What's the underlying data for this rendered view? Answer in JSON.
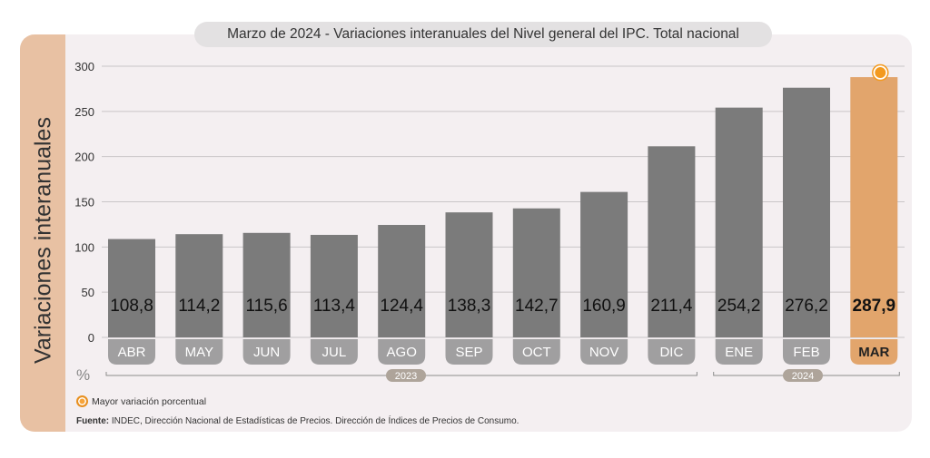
{
  "title": "Marzo de 2024 - Variaciones interanuales del Nivel general del IPC. Total nacional",
  "colors": {
    "bar": "#7b7b7b",
    "highlight_bar": "#e2a56c",
    "label_pill": "#a09fa0",
    "highlight_pill": "#e2a56c",
    "marker": "#f39a1f",
    "sidebar": "#e8c1a3",
    "year_pill": "#aea49a"
  },
  "legend": {
    "marker_label": "Mayor variación porcentual",
    "marker_icon": "orange-circle-icon"
  },
  "source": {
    "label": "Fuente:",
    "text": " INDEC, Dirección Nacional de Estadísticas de Precios. Dirección de Índices de Precios de Consumo."
  },
  "chart_data": {
    "type": "bar",
    "title": "Marzo de 2024 - Variaciones interanuales del Nivel general del IPC. Total nacional",
    "xlabel": "",
    "ylabel": "Variaciones interanuales",
    "yunit": "%",
    "ylim": [
      0,
      300
    ],
    "yticks": [
      0,
      50,
      100,
      150,
      200,
      250,
      300
    ],
    "grid": true,
    "categories": [
      "ABR",
      "MAY",
      "JUN",
      "JUL",
      "AGO",
      "SEP",
      "OCT",
      "NOV",
      "DIC",
      "ENE",
      "FEB",
      "MAR"
    ],
    "values": [
      108.8,
      114.2,
      115.6,
      113.4,
      124.4,
      138.3,
      142.7,
      160.9,
      211.4,
      254.2,
      276.2,
      287.9
    ],
    "value_labels": [
      "108,8",
      "114,2",
      "115,6",
      "113,4",
      "124,4",
      "138,3",
      "142,7",
      "160,9",
      "211,4",
      "254,2",
      "276,2",
      "287,9"
    ],
    "highlight_index": 11,
    "year_groups": [
      {
        "label": "2023",
        "from": 0,
        "to": 8
      },
      {
        "label": "2024",
        "from": 9,
        "to": 11
      }
    ]
  }
}
